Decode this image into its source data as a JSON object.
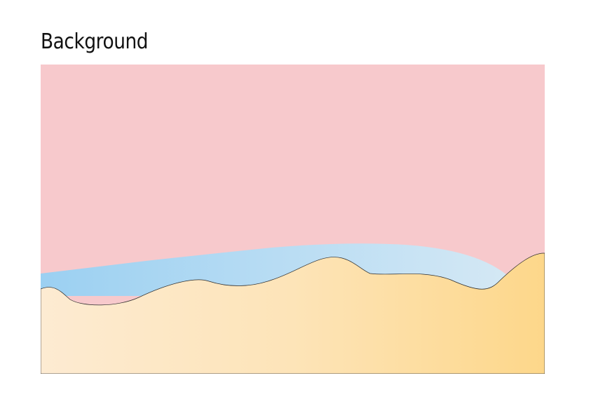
{
  "title": "Background",
  "colors": {
    "sky": "#f7c9cc",
    "water_left": "#9bd0f2",
    "water_right": "#d4e8f4",
    "sand_left": "#fdebd2",
    "sand_mid": "#fde4b8",
    "sand_right": "#fdd78a",
    "outline": "#2a2a2a"
  }
}
